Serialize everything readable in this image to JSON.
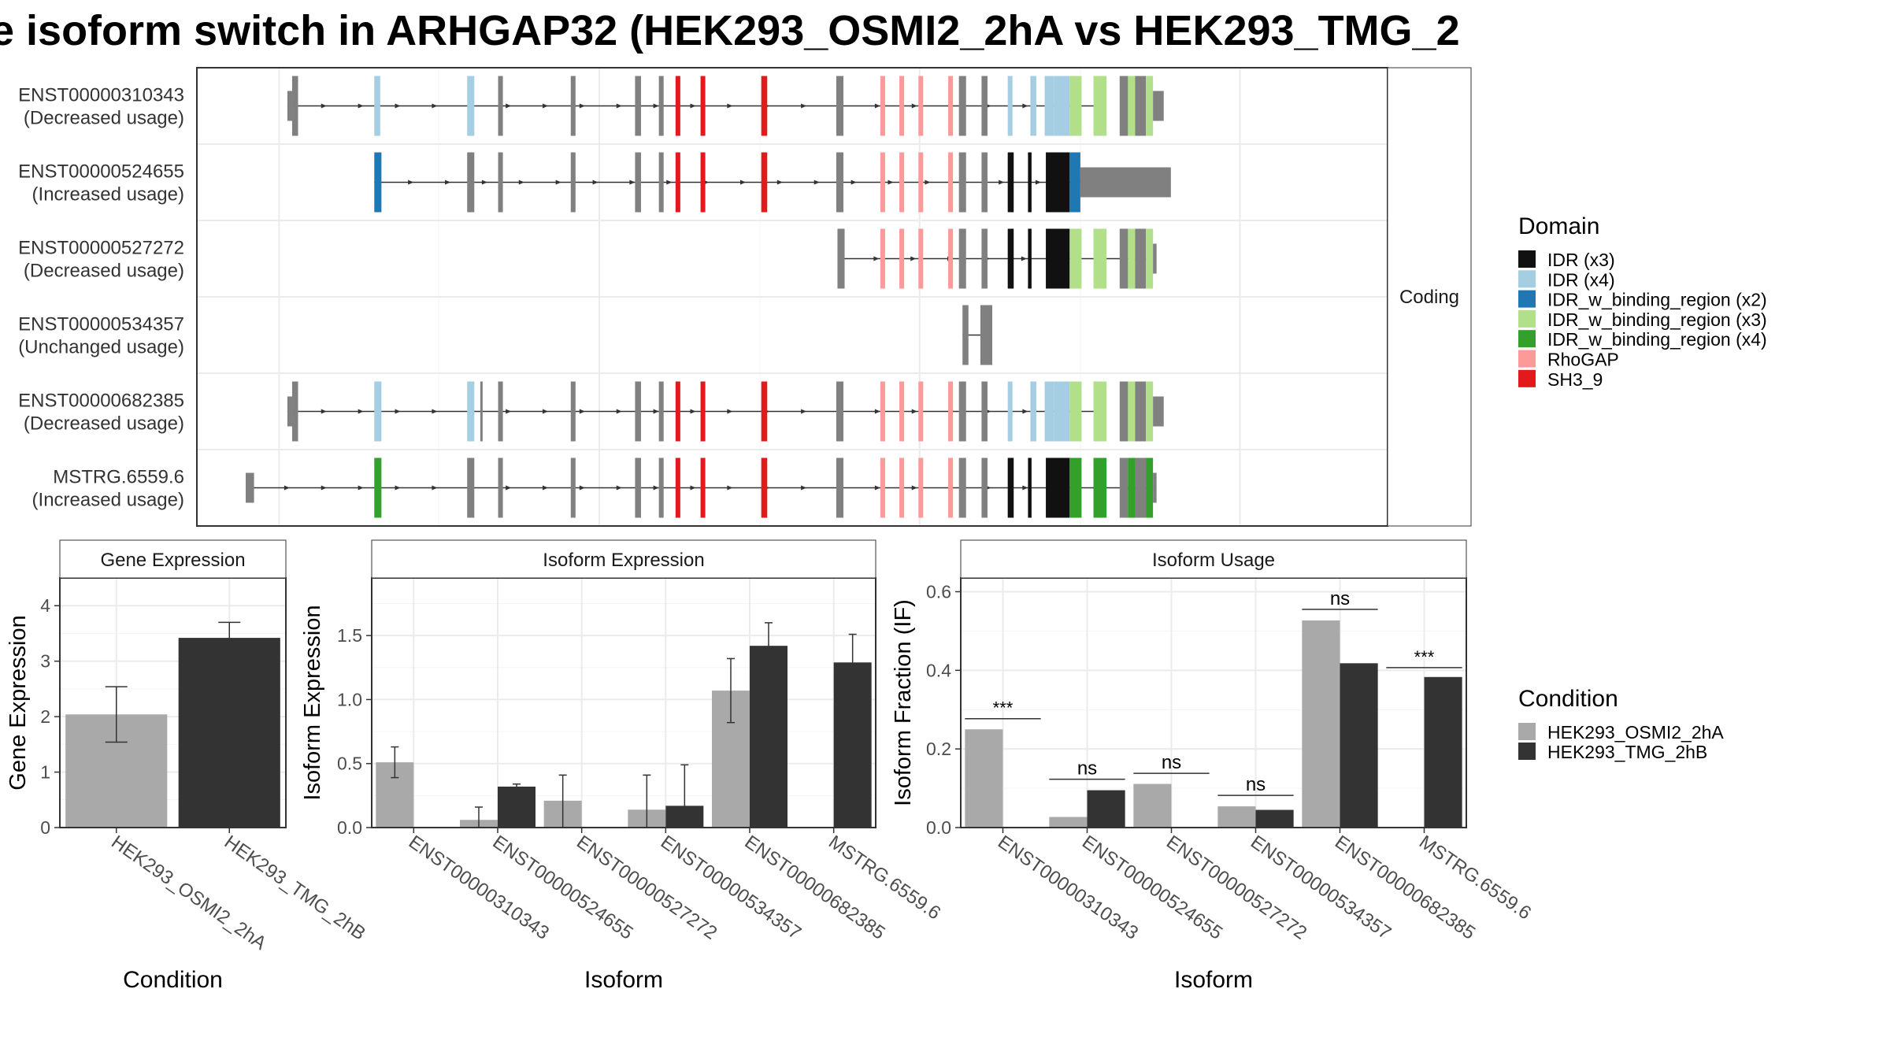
{
  "title": "e isoform switch in ARHGAP32 (HEK293_OSMI2_2hA vs HEK293_TMG_2",
  "colors": {
    "IDR (x3)": "#111111",
    "IDR (x4)": "#a6cee3",
    "IDR_w_binding_region (x2)": "#1f78b4",
    "IDR_w_binding_region (x3)": "#b2df8a",
    "IDR_w_binding_region (x4)": "#33a02c",
    "RhoGAP": "#fb9a99",
    "SH3_9": "#e31a1c",
    "exon": "#808080",
    "cond1": "#a9a9a9",
    "cond2": "#333333"
  },
  "chart_data": [
    {
      "type": "gene-structure",
      "strip_label": "Coding",
      "legend_title": "Domain",
      "legend": [
        "IDR (x3)",
        "IDR (x4)",
        "IDR_w_binding_region (x2)",
        "IDR_w_binding_region (x3)",
        "IDR_w_binding_region (x4)",
        "RhoGAP",
        "SH3_9"
      ],
      "isoforms": [
        {
          "id": "ENST00000310343",
          "usage": "(Decreased usage)",
          "start": 0.076,
          "end": 0.758,
          "exons": [
            [
              0.076,
              0.08,
              "t"
            ],
            [
              0.08,
              0.085,
              "c"
            ],
            [
              0.149,
              0.154,
              "IDR (x4)"
            ],
            [
              0.227,
              0.233,
              "IDR (x4)"
            ],
            [
              0.253,
              0.257,
              "c"
            ],
            [
              0.314,
              0.318,
              "c"
            ],
            [
              0.368,
              0.373,
              "c"
            ],
            [
              0.388,
              0.392,
              "c"
            ],
            [
              0.402,
              0.406,
              "SH3_9"
            ],
            [
              0.423,
              0.427,
              "SH3_9"
            ],
            [
              0.474,
              0.479,
              "SH3_9"
            ],
            [
              0.537,
              0.543,
              "c"
            ],
            [
              0.574,
              0.578,
              "RhoGAP"
            ],
            [
              0.59,
              0.594,
              "RhoGAP"
            ],
            [
              0.606,
              0.61,
              "RhoGAP"
            ],
            [
              0.631,
              0.635,
              "RhoGAP"
            ],
            [
              0.64,
              0.646,
              "c"
            ],
            [
              0.659,
              0.664,
              "c"
            ],
            [
              0.681,
              0.685,
              "IDR (x4)"
            ],
            [
              0.7,
              0.705,
              "IDR (x4)"
            ],
            [
              0.712,
              0.72,
              "IDR (x4)"
            ],
            [
              0.72,
              0.733,
              "IDR (x4)"
            ],
            [
              0.733,
              0.743,
              "IDR_w_binding_region (x3)"
            ],
            [
              0.753,
              0.764,
              "IDR_w_binding_region (x3)"
            ],
            [
              0.775,
              0.782,
              "c"
            ],
            [
              0.782,
              0.788,
              "IDR_w_binding_region (x3)"
            ],
            [
              0.788,
              0.797,
              "c"
            ],
            [
              0.797,
              0.803,
              "IDR_w_binding_region (x3)"
            ],
            [
              0.803,
              0.812,
              "t"
            ]
          ]
        },
        {
          "id": "ENST00000524655",
          "usage": "(Increased usage)",
          "start": 0.149,
          "end": 0.742,
          "exons": [
            [
              0.149,
              0.155,
              "IDR_w_binding_region (x2)"
            ],
            [
              0.227,
              0.233,
              "c"
            ],
            [
              0.253,
              0.257,
              "c"
            ],
            [
              0.314,
              0.318,
              "c"
            ],
            [
              0.368,
              0.373,
              "c"
            ],
            [
              0.388,
              0.392,
              "c"
            ],
            [
              0.402,
              0.406,
              "SH3_9"
            ],
            [
              0.423,
              0.427,
              "SH3_9"
            ],
            [
              0.474,
              0.479,
              "SH3_9"
            ],
            [
              0.537,
              0.543,
              "c"
            ],
            [
              0.574,
              0.578,
              "RhoGAP"
            ],
            [
              0.59,
              0.594,
              "RhoGAP"
            ],
            [
              0.606,
              0.61,
              "RhoGAP"
            ],
            [
              0.631,
              0.635,
              "RhoGAP"
            ],
            [
              0.64,
              0.646,
              "c"
            ],
            [
              0.659,
              0.664,
              "c"
            ],
            [
              0.681,
              0.686,
              "IDR (x3)"
            ],
            [
              0.698,
              0.701,
              "IDR (x3)"
            ],
            [
              0.713,
              0.733,
              "IDR (x3)"
            ],
            [
              0.733,
              0.742,
              "IDR_w_binding_region (x2)"
            ],
            [
              0.742,
              0.818,
              "t"
            ]
          ]
        },
        {
          "id": "ENST00000527272",
          "usage": "(Decreased usage)",
          "start": 0.54,
          "end": 0.803,
          "exons": [
            [
              0.538,
              0.544,
              "c"
            ],
            [
              0.574,
              0.578,
              "RhoGAP"
            ],
            [
              0.59,
              0.594,
              "RhoGAP"
            ],
            [
              0.606,
              0.61,
              "RhoGAP"
            ],
            [
              0.631,
              0.635,
              "RhoGAP"
            ],
            [
              0.64,
              0.646,
              "c"
            ],
            [
              0.659,
              0.664,
              "c"
            ],
            [
              0.681,
              0.686,
              "IDR (x3)"
            ],
            [
              0.698,
              0.701,
              "IDR (x3)"
            ],
            [
              0.713,
              0.733,
              "IDR (x3)"
            ],
            [
              0.733,
              0.743,
              "IDR_w_binding_region (x3)"
            ],
            [
              0.753,
              0.764,
              "IDR_w_binding_region (x3)"
            ],
            [
              0.775,
              0.782,
              "c"
            ],
            [
              0.782,
              0.788,
              "IDR_w_binding_region (x3)"
            ],
            [
              0.788,
              0.797,
              "c"
            ],
            [
              0.797,
              0.803,
              "IDR_w_binding_region (x3)"
            ],
            [
              0.803,
              0.806,
              "t"
            ]
          ]
        },
        {
          "id": "ENST00000534357",
          "usage": "(Unchanged usage)",
          "start": 0.643,
          "end": 0.668,
          "exons": [
            [
              0.643,
              0.648,
              "c"
            ],
            [
              0.658,
              0.668,
              "c"
            ]
          ]
        },
        {
          "id": "ENST00000682385",
          "usage": "(Decreased usage)",
          "start": 0.076,
          "end": 0.758,
          "exons": [
            [
              0.076,
              0.08,
              "t"
            ],
            [
              0.08,
              0.085,
              "c"
            ],
            [
              0.149,
              0.155,
              "IDR (x4)"
            ],
            [
              0.227,
              0.233,
              "IDR (x4)"
            ],
            [
              0.238,
              0.24,
              "c"
            ],
            [
              0.253,
              0.257,
              "c"
            ],
            [
              0.314,
              0.318,
              "c"
            ],
            [
              0.368,
              0.373,
              "c"
            ],
            [
              0.388,
              0.392,
              "c"
            ],
            [
              0.402,
              0.406,
              "SH3_9"
            ],
            [
              0.423,
              0.427,
              "SH3_9"
            ],
            [
              0.474,
              0.479,
              "SH3_9"
            ],
            [
              0.537,
              0.543,
              "c"
            ],
            [
              0.574,
              0.578,
              "RhoGAP"
            ],
            [
              0.59,
              0.594,
              "RhoGAP"
            ],
            [
              0.606,
              0.61,
              "RhoGAP"
            ],
            [
              0.631,
              0.635,
              "RhoGAP"
            ],
            [
              0.64,
              0.646,
              "c"
            ],
            [
              0.659,
              0.664,
              "c"
            ],
            [
              0.681,
              0.685,
              "IDR (x4)"
            ],
            [
              0.7,
              0.705,
              "IDR (x4)"
            ],
            [
              0.712,
              0.72,
              "IDR (x4)"
            ],
            [
              0.72,
              0.733,
              "IDR (x4)"
            ],
            [
              0.733,
              0.743,
              "IDR_w_binding_region (x3)"
            ],
            [
              0.753,
              0.764,
              "IDR_w_binding_region (x3)"
            ],
            [
              0.775,
              0.782,
              "c"
            ],
            [
              0.782,
              0.788,
              "IDR_w_binding_region (x3)"
            ],
            [
              0.788,
              0.797,
              "c"
            ],
            [
              0.797,
              0.803,
              "IDR_w_binding_region (x3)"
            ],
            [
              0.803,
              0.812,
              "t"
            ]
          ]
        },
        {
          "id": "MSTRG.6559.6",
          "usage": "(Increased usage)",
          "start": 0.045,
          "end": 0.803,
          "exons": [
            [
              0.041,
              0.048,
              "t"
            ],
            [
              0.149,
              0.155,
              "IDR_w_binding_region (x4)"
            ],
            [
              0.227,
              0.233,
              "c"
            ],
            [
              0.253,
              0.257,
              "c"
            ],
            [
              0.314,
              0.318,
              "c"
            ],
            [
              0.368,
              0.373,
              "c"
            ],
            [
              0.388,
              0.392,
              "c"
            ],
            [
              0.402,
              0.406,
              "SH3_9"
            ],
            [
              0.423,
              0.427,
              "SH3_9"
            ],
            [
              0.474,
              0.479,
              "SH3_9"
            ],
            [
              0.537,
              0.543,
              "c"
            ],
            [
              0.574,
              0.578,
              "RhoGAP"
            ],
            [
              0.59,
              0.594,
              "RhoGAP"
            ],
            [
              0.606,
              0.61,
              "RhoGAP"
            ],
            [
              0.631,
              0.635,
              "RhoGAP"
            ],
            [
              0.64,
              0.646,
              "c"
            ],
            [
              0.659,
              0.664,
              "c"
            ],
            [
              0.681,
              0.686,
              "IDR (x3)"
            ],
            [
              0.698,
              0.701,
              "IDR (x3)"
            ],
            [
              0.713,
              0.733,
              "IDR (x3)"
            ],
            [
              0.733,
              0.743,
              "IDR_w_binding_region (x4)"
            ],
            [
              0.753,
              0.764,
              "IDR_w_binding_region (x4)"
            ],
            [
              0.775,
              0.782,
              "c"
            ],
            [
              0.782,
              0.788,
              "IDR_w_binding_region (x4)"
            ],
            [
              0.788,
              0.797,
              "c"
            ],
            [
              0.797,
              0.803,
              "IDR_w_binding_region (x4)"
            ],
            [
              0.803,
              0.806,
              "t"
            ]
          ]
        }
      ]
    },
    {
      "type": "bar",
      "title": "Gene Expression",
      "xlabel": "Condition",
      "ylabel": "Gene Expression",
      "categories": [
        "HEK293_OSMI2_2hA",
        "HEK293_TMG_2hB"
      ],
      "values": [
        2.04,
        3.42
      ],
      "errors": [
        [
          1.54,
          2.54
        ],
        [
          3.14,
          3.7
        ]
      ],
      "ylim": [
        0,
        4.5
      ],
      "yticks": [
        0,
        1,
        2,
        3,
        4
      ]
    },
    {
      "type": "bar",
      "title": "Isoform Expression",
      "xlabel": "Isoform",
      "ylabel": "Isoform Expression",
      "categories": [
        "ENST00000310343",
        "ENST00000524655",
        "ENST00000527272",
        "ENST00000534357",
        "ENST00000682385",
        "MSTRG.6559.6"
      ],
      "series": [
        {
          "values": [
            0.51,
            0.06,
            0.21,
            0.14,
            1.07,
            0.0
          ],
          "errors": [
            [
              0.39,
              0.63
            ],
            [
              0.0,
              0.16
            ],
            [
              0.0,
              0.41
            ],
            [
              0.0,
              0.41
            ],
            [
              0.82,
              1.32
            ],
            [
              0.0,
              0.0
            ]
          ]
        },
        {
          "values": [
            0.0,
            0.32,
            0.0,
            0.17,
            1.42,
            1.29
          ],
          "errors": [
            [
              0.0,
              0.0
            ],
            [
              0.3,
              0.34
            ],
            [
              0.0,
              0.0
            ],
            [
              0.0,
              0.49
            ],
            [
              1.24,
              1.6
            ],
            [
              1.07,
              1.51
            ]
          ]
        }
      ],
      "ylim": [
        0,
        1.95
      ],
      "yticks": [
        0.0,
        0.5,
        1.0,
        1.5
      ]
    },
    {
      "type": "bar",
      "title": "Isoform Usage",
      "xlabel": "Isoform",
      "ylabel": "Isoform Fraction (IF)",
      "categories": [
        "ENST00000310343",
        "ENST00000524655",
        "ENST00000527272",
        "ENST00000534357",
        "ENST00000682385",
        "MSTRG.6559.6"
      ],
      "series": [
        {
          "values": [
            0.25,
            0.027,
            0.111,
            0.054,
            0.527,
            0.0
          ]
        },
        {
          "values": [
            0.0,
            0.095,
            0.0,
            0.045,
            0.418,
            0.383
          ]
        }
      ],
      "significance": [
        "***",
        "ns",
        "ns",
        "ns",
        "ns",
        "***"
      ],
      "sig_y": [
        0.277,
        0.123,
        0.138,
        0.082,
        0.555,
        0.407
      ],
      "ylim": [
        0,
        0.635
      ],
      "yticks": [
        0.0,
        0.2,
        0.4,
        0.6
      ]
    }
  ],
  "condition_legend": {
    "title": "Condition",
    "items": [
      "HEK293_OSMI2_2hA",
      "HEK293_TMG_2hB"
    ]
  }
}
